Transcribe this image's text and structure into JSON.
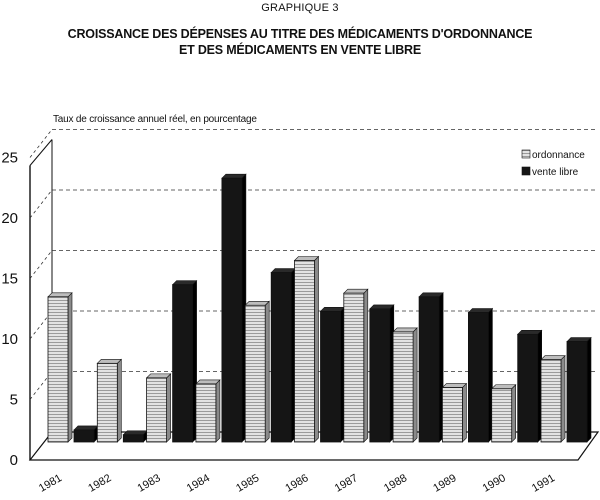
{
  "chart_data": {
    "type": "bar",
    "graph_label": "GRAPHIQUE 3",
    "title_line1": "CROISSANCE DES DÉPENSES AU TITRE DES MÉDICAMENTS D'ORDONNANCE",
    "title_line2": "ET DES MÉDICAMENTS EN VENTE LIBRE",
    "ylabel": "Taux de croissance annuel réel, en pourcentage",
    "xlabel": "",
    "categories": [
      "1981",
      "1982",
      "1983",
      "1984",
      "1985",
      "1986",
      "1987",
      "1988",
      "1989",
      "1990",
      "1991"
    ],
    "series": [
      {
        "name": "ordonnance",
        "values": [
          12.0,
          6.5,
          5.3,
          4.8,
          11.3,
          15.0,
          12.3,
          9.1,
          4.5,
          4.4,
          6.8
        ]
      },
      {
        "name": "vente libre",
        "values": [
          1.0,
          0.6,
          13.0,
          21.8,
          14.0,
          10.8,
          11.0,
          12.0,
          10.7,
          8.9,
          8.3
        ]
      }
    ],
    "ylim": [
      0,
      25
    ],
    "yticks": [
      "0",
      "5",
      "10",
      "15",
      "20",
      "25"
    ],
    "grid": true,
    "legend_position": "top-right",
    "colors": {
      "ordonnance": "#d9d9d9",
      "vente libre": "#151515"
    }
  }
}
